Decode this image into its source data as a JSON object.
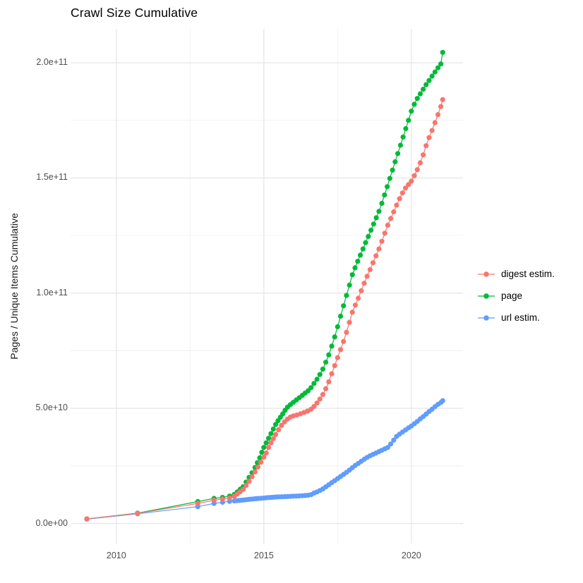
{
  "title": "Crawl Size Cumulative",
  "y_axis_label": "Pages / Unique Items Cumulative",
  "legend": {
    "items": [
      {
        "label": "digest estim.",
        "color": "#F8766D"
      },
      {
        "label": "page",
        "color": "#00BA38"
      },
      {
        "label": "url estim.",
        "color": "#619CFF"
      }
    ]
  },
  "chart_data": {
    "type": "line",
    "title": "Crawl Size Cumulative",
    "xlabel": "",
    "ylabel": "Pages / Unique Items Cumulative",
    "value_unit": "billions of pages (1e9)",
    "xlim": [
      2008.45,
      2021.75
    ],
    "ylim": [
      -8.7,
      214.7
    ],
    "grid": "on",
    "legend_position": "right",
    "x_ticks": [
      {
        "value": 2010,
        "label": "2010"
      },
      {
        "value": 2015,
        "label": "2015"
      },
      {
        "value": 2020,
        "label": "2020"
      }
    ],
    "x_minor": [
      2012.5,
      2017.5
    ],
    "y_ticks": [
      {
        "value": 0,
        "label": "0.0e+00"
      },
      {
        "value": 50,
        "label": "5.0e+10"
      },
      {
        "value": 100,
        "label": "1.0e+11"
      },
      {
        "value": 150,
        "label": "1.5e+11"
      },
      {
        "value": 200,
        "label": "2.0e+11"
      }
    ],
    "y_minor": [
      25,
      75,
      125,
      175
    ],
    "series": [
      {
        "name": "digest estim.",
        "color": "#F8766D",
        "z": 3,
        "points": [
          [
            2009.0,
            2.0
          ],
          [
            2010.72,
            4.4
          ],
          [
            2012.76,
            8.7
          ],
          [
            2013.31,
            10.1
          ],
          [
            2013.6,
            10.6
          ],
          [
            2013.84,
            11.1
          ],
          [
            2014.0,
            11.8
          ],
          [
            2014.1,
            12.8
          ],
          [
            2014.2,
            13.8
          ],
          [
            2014.3,
            14.8
          ],
          [
            2014.4,
            16.5
          ],
          [
            2014.5,
            18.3
          ],
          [
            2014.6,
            20.3
          ],
          [
            2014.7,
            22.4
          ],
          [
            2014.8,
            24.5
          ],
          [
            2014.9,
            26.6
          ],
          [
            2015.0,
            28.8
          ],
          [
            2015.08,
            30.6
          ],
          [
            2015.16,
            33.0
          ],
          [
            2015.24,
            35.0
          ],
          [
            2015.32,
            36.8
          ],
          [
            2015.4,
            38.6
          ],
          [
            2015.5,
            40.7
          ],
          [
            2015.6,
            42.6
          ],
          [
            2015.7,
            44.1
          ],
          [
            2015.8,
            45.3
          ],
          [
            2015.9,
            46.2
          ],
          [
            2016.0,
            46.7
          ],
          [
            2016.12,
            47.1
          ],
          [
            2016.24,
            47.6
          ],
          [
            2016.36,
            48.2
          ],
          [
            2016.48,
            48.8
          ],
          [
            2016.6,
            49.6
          ],
          [
            2016.7,
            50.8
          ],
          [
            2016.8,
            52.3
          ],
          [
            2016.9,
            54.0
          ],
          [
            2017.0,
            56.0
          ],
          [
            2017.1,
            58.5
          ],
          [
            2017.2,
            61.5
          ],
          [
            2017.3,
            65.0
          ],
          [
            2017.4,
            68.5
          ],
          [
            2017.5,
            72.0
          ],
          [
            2017.6,
            75.5
          ],
          [
            2017.7,
            79.0
          ],
          [
            2017.8,
            83.0
          ],
          [
            2017.9,
            87.3
          ],
          [
            2018.0,
            91.7
          ],
          [
            2018.1,
            94.8
          ],
          [
            2018.2,
            97.8
          ],
          [
            2018.3,
            101.0
          ],
          [
            2018.4,
            104.3
          ],
          [
            2018.5,
            107.3
          ],
          [
            2018.6,
            110.2
          ],
          [
            2018.7,
            113.2
          ],
          [
            2018.8,
            116.2
          ],
          [
            2018.9,
            119.2
          ],
          [
            2019.0,
            122.5
          ],
          [
            2019.1,
            126.0
          ],
          [
            2019.2,
            129.5
          ],
          [
            2019.3,
            132.4
          ],
          [
            2019.4,
            135.3
          ],
          [
            2019.5,
            138.2
          ],
          [
            2019.6,
            141.0
          ],
          [
            2019.7,
            143.5
          ],
          [
            2019.8,
            145.6
          ],
          [
            2019.9,
            147.1
          ],
          [
            2020.0,
            148.6
          ],
          [
            2020.1,
            151.0
          ],
          [
            2020.2,
            153.6
          ],
          [
            2020.3,
            156.6
          ],
          [
            2020.4,
            160.0
          ],
          [
            2020.5,
            164.0
          ],
          [
            2020.6,
            167.5
          ],
          [
            2020.7,
            170.6
          ],
          [
            2020.8,
            174.0
          ],
          [
            2020.9,
            177.5
          ],
          [
            2021.0,
            181.0
          ],
          [
            2021.06,
            184.0
          ]
        ]
      },
      {
        "name": "page",
        "color": "#00BA38",
        "z": 1,
        "points": [
          [
            2009.0,
            2.0
          ],
          [
            2010.72,
            4.5
          ],
          [
            2012.76,
            9.5
          ],
          [
            2013.31,
            10.9
          ],
          [
            2013.6,
            11.3
          ],
          [
            2013.84,
            11.9
          ],
          [
            2014.0,
            12.6
          ],
          [
            2014.1,
            13.7
          ],
          [
            2014.2,
            14.9
          ],
          [
            2014.3,
            16.0
          ],
          [
            2014.4,
            18.0
          ],
          [
            2014.5,
            20.0
          ],
          [
            2014.6,
            22.0
          ],
          [
            2014.7,
            24.3
          ],
          [
            2014.78,
            26.4
          ],
          [
            2014.86,
            28.5
          ],
          [
            2014.93,
            30.9
          ],
          [
            2015.0,
            33.0
          ],
          [
            2015.08,
            35.0
          ],
          [
            2015.16,
            37.0
          ],
          [
            2015.24,
            39.0
          ],
          [
            2015.32,
            41.0
          ],
          [
            2015.4,
            43.0
          ],
          [
            2015.48,
            44.6
          ],
          [
            2015.56,
            46.1
          ],
          [
            2015.64,
            47.6
          ],
          [
            2015.72,
            49.1
          ],
          [
            2015.8,
            50.5
          ],
          [
            2015.9,
            51.6
          ],
          [
            2016.0,
            52.6
          ],
          [
            2016.1,
            53.6
          ],
          [
            2016.2,
            54.6
          ],
          [
            2016.3,
            55.6
          ],
          [
            2016.4,
            56.6
          ],
          [
            2016.5,
            57.6
          ],
          [
            2016.6,
            59.0
          ],
          [
            2016.7,
            60.8
          ],
          [
            2016.8,
            62.6
          ],
          [
            2016.9,
            64.7
          ],
          [
            2017.0,
            67.0
          ],
          [
            2017.1,
            70.0
          ],
          [
            2017.2,
            73.2
          ],
          [
            2017.3,
            77.0
          ],
          [
            2017.4,
            81.0
          ],
          [
            2017.5,
            85.4
          ],
          [
            2017.6,
            90.0
          ],
          [
            2017.7,
            94.5
          ],
          [
            2017.8,
            99.0
          ],
          [
            2017.9,
            103.5
          ],
          [
            2018.0,
            108.0
          ],
          [
            2018.09,
            111.0
          ],
          [
            2018.18,
            113.8
          ],
          [
            2018.27,
            116.5
          ],
          [
            2018.36,
            119.2
          ],
          [
            2018.45,
            121.9
          ],
          [
            2018.54,
            124.6
          ],
          [
            2018.63,
            127.3
          ],
          [
            2018.72,
            130.0
          ],
          [
            2018.81,
            132.7
          ],
          [
            2018.9,
            135.5
          ],
          [
            2019.0,
            139.0
          ],
          [
            2019.09,
            142.6
          ],
          [
            2019.18,
            146.2
          ],
          [
            2019.27,
            149.8
          ],
          [
            2019.36,
            153.4
          ],
          [
            2019.45,
            157.0
          ],
          [
            2019.54,
            160.6
          ],
          [
            2019.63,
            164.2
          ],
          [
            2019.72,
            167.8
          ],
          [
            2019.81,
            171.4
          ],
          [
            2019.9,
            175.0
          ],
          [
            2020.0,
            179.0
          ],
          [
            2020.1,
            182.0
          ],
          [
            2020.2,
            184.5
          ],
          [
            2020.3,
            186.5
          ],
          [
            2020.4,
            188.5
          ],
          [
            2020.5,
            190.5
          ],
          [
            2020.6,
            192.3
          ],
          [
            2020.7,
            194.2
          ],
          [
            2020.8,
            196.0
          ],
          [
            2020.9,
            197.8
          ],
          [
            2021.0,
            199.5
          ],
          [
            2021.06,
            204.5
          ]
        ]
      },
      {
        "name": "url estim.",
        "color": "#619CFF",
        "z": 2,
        "points": [
          [
            2009.0,
            1.9
          ],
          [
            2010.72,
            4.2
          ],
          [
            2012.76,
            7.3
          ],
          [
            2013.31,
            8.7
          ],
          [
            2013.6,
            9.2
          ],
          [
            2013.84,
            9.6
          ],
          [
            2014.0,
            9.8
          ],
          [
            2014.08,
            9.9
          ],
          [
            2014.16,
            10.0
          ],
          [
            2014.24,
            10.1
          ],
          [
            2014.32,
            10.2
          ],
          [
            2014.4,
            10.35
          ],
          [
            2014.48,
            10.45
          ],
          [
            2014.56,
            10.55
          ],
          [
            2014.64,
            10.65
          ],
          [
            2014.72,
            10.75
          ],
          [
            2014.8,
            10.85
          ],
          [
            2014.9,
            10.95
          ],
          [
            2015.0,
            11.05
          ],
          [
            2015.08,
            11.15
          ],
          [
            2015.16,
            11.25
          ],
          [
            2015.25,
            11.3
          ],
          [
            2015.33,
            11.4
          ],
          [
            2015.42,
            11.5
          ],
          [
            2015.5,
            11.55
          ],
          [
            2015.6,
            11.6
          ],
          [
            2015.7,
            11.65
          ],
          [
            2015.8,
            11.7
          ],
          [
            2015.9,
            11.78
          ],
          [
            2016.0,
            11.85
          ],
          [
            2016.1,
            11.9
          ],
          [
            2016.2,
            11.95
          ],
          [
            2016.3,
            12.05
          ],
          [
            2016.4,
            12.15
          ],
          [
            2016.5,
            12.25
          ],
          [
            2016.6,
            12.5
          ],
          [
            2016.7,
            13.2
          ],
          [
            2016.8,
            13.7
          ],
          [
            2016.9,
            14.3
          ],
          [
            2017.0,
            15.0
          ],
          [
            2017.1,
            15.9
          ],
          [
            2017.2,
            16.8
          ],
          [
            2017.3,
            17.7
          ],
          [
            2017.4,
            18.6
          ],
          [
            2017.5,
            19.5
          ],
          [
            2017.6,
            20.4
          ],
          [
            2017.7,
            21.3
          ],
          [
            2017.8,
            22.2
          ],
          [
            2017.9,
            23.2
          ],
          [
            2018.0,
            24.2
          ],
          [
            2018.1,
            25.2
          ],
          [
            2018.2,
            26.1
          ],
          [
            2018.3,
            27.0
          ],
          [
            2018.4,
            27.9
          ],
          [
            2018.5,
            28.7
          ],
          [
            2018.6,
            29.4
          ],
          [
            2018.7,
            30.0
          ],
          [
            2018.8,
            30.6
          ],
          [
            2018.9,
            31.2
          ],
          [
            2019.0,
            31.8
          ],
          [
            2019.1,
            32.4
          ],
          [
            2019.2,
            33.0
          ],
          [
            2019.3,
            34.5
          ],
          [
            2019.4,
            36.2
          ],
          [
            2019.5,
            37.8
          ],
          [
            2019.6,
            38.8
          ],
          [
            2019.7,
            39.7
          ],
          [
            2019.8,
            40.6
          ],
          [
            2019.9,
            41.5
          ],
          [
            2020.0,
            42.3
          ],
          [
            2020.1,
            43.3
          ],
          [
            2020.2,
            44.3
          ],
          [
            2020.3,
            45.4
          ],
          [
            2020.4,
            46.4
          ],
          [
            2020.5,
            47.5
          ],
          [
            2020.6,
            48.6
          ],
          [
            2020.7,
            49.6
          ],
          [
            2020.8,
            50.7
          ],
          [
            2020.9,
            51.7
          ],
          [
            2021.0,
            52.5
          ],
          [
            2021.06,
            53.3
          ]
        ]
      }
    ],
    "style": {
      "major_grid_color": "#E3E3E3",
      "minor_grid_color": "#F0F0F0",
      "point_radius": 3.6,
      "line_width": 1.2
    }
  }
}
